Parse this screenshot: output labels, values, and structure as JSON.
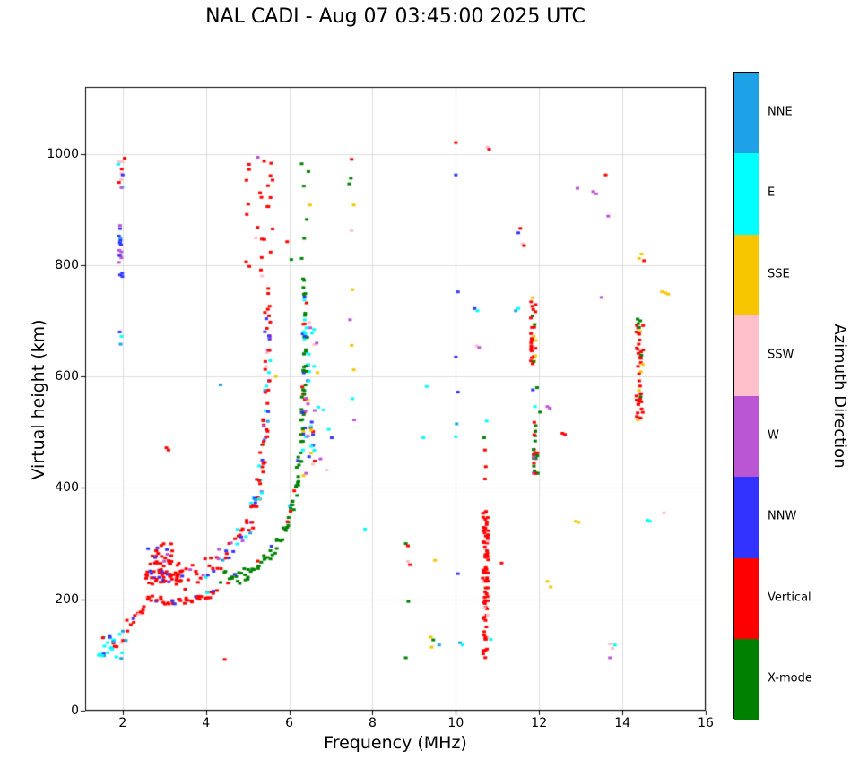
{
  "chart_data": {
    "type": "scatter",
    "title": "NAL CADI - Aug 07 03:45:00 2025 UTC",
    "xlabel": "Frequency (MHz)",
    "ylabel": "Virtual height (km)",
    "xlim": [
      1.1,
      16
    ],
    "ylim": [
      0,
      1120
    ],
    "xticks": [
      2,
      4,
      6,
      8,
      10,
      12,
      14,
      16
    ],
    "yticks": [
      0,
      200,
      400,
      600,
      800,
      1000
    ],
    "grid": true,
    "legend_position": "right-colorbar",
    "colorbar": {
      "label": "Azimuth Direction",
      "categories_top_to_bottom": [
        "NNE",
        "E",
        "SSE",
        "SSW",
        "W",
        "NNW",
        "Vertical",
        "X-mode"
      ]
    },
    "palette": {
      "NNE": "#1da2e8",
      "E": "#00ffff",
      "SSE": "#f7c600",
      "SSW": "#ffc0cb",
      "W": "#ba55d3",
      "NNW": "#3333ff",
      "Vertical": "#ff0000",
      "X-mode": "#008000"
    },
    "marker": {
      "w": 4,
      "h": 3
    },
    "bands": [
      {
        "f": [
          1.42,
          2.1
        ],
        "h": [
          92,
          145
        ],
        "n": 30,
        "colors": {
          "E": 0.3,
          "Vertical": 0.25,
          "NNE": 0.2,
          "NNW": 0.15,
          "SSW": 0.1
        }
      },
      {
        "f": [
          1.9,
          2.0
        ],
        "h": [
          773,
          882
        ],
        "n": 18,
        "colors": {
          "NNW": 0.55,
          "W": 0.3,
          "NNE": 0.15
        }
      },
      {
        "f": [
          1.88,
          2.02
        ],
        "h": [
          935,
          995
        ],
        "n": 10,
        "colors": {
          "SSW": 0.3,
          "X-mode": 0.2,
          "Vertical": 0.2,
          "E": 0.15,
          "W": 0.15
        }
      },
      {
        "f": [
          2.55,
          3.45
        ],
        "h": [
          225,
          265
        ],
        "n": 60,
        "colors": {
          "Vertical": 0.78,
          "NNW": 0.12,
          "X-mode": 0.05,
          "SSW": 0.05
        }
      },
      {
        "f": [
          2.6,
          3.2
        ],
        "h": [
          265,
          302
        ],
        "n": 22,
        "colors": {
          "Vertical": 0.7,
          "NNW": 0.2,
          "W": 0.1
        }
      },
      {
        "f": [
          4.95,
          5.6
        ],
        "h": [
          745,
          1005
        ],
        "n": 26,
        "colors": {
          "Vertical": 0.8,
          "W": 0.1,
          "SSW": 0.1
        }
      },
      {
        "f": [
          6.32,
          6.62
        ],
        "h": [
          415,
          705
        ],
        "n": 48,
        "colors": {
          "E": 0.25,
          "NNW": 0.2,
          "Vertical": 0.2,
          "SSE": 0.12,
          "W": 0.13,
          "SSW": 0.1
        }
      },
      {
        "f": [
          10.64,
          10.78
        ],
        "h": [
          90,
          358
        ],
        "n": 80,
        "colors": {
          "Vertical": 0.92,
          "SSW": 0.05,
          "E": 0.03
        }
      },
      {
        "f": [
          11.8,
          11.92
        ],
        "h": [
          620,
          748
        ],
        "n": 30,
        "colors": {
          "Vertical": 0.8,
          "SSE": 0.1,
          "X-mode": 0.1
        }
      },
      {
        "f": [
          11.86,
          11.97
        ],
        "h": [
          425,
          520
        ],
        "n": 26,
        "colors": {
          "X-mode": 0.55,
          "Vertical": 0.35,
          "W": 0.1
        }
      },
      {
        "f": [
          14.33,
          14.5
        ],
        "h": [
          515,
          705
        ],
        "n": 42,
        "colors": {
          "Vertical": 0.9,
          "X-mode": 0.06,
          "SSE": 0.04
        }
      }
    ],
    "traces": [
      {
        "path": [
          [
            2.1,
            150
          ],
          [
            2.35,
            168
          ],
          [
            2.6,
            195
          ]
        ],
        "n": 14,
        "jf": 0.06,
        "jh": 10,
        "colors": {
          "Vertical": 0.6,
          "NNW": 0.2,
          "SSW": 0.2
        }
      },
      {
        "path": [
          [
            2.6,
            202
          ],
          [
            3.2,
            196
          ],
          [
            3.8,
            202
          ],
          [
            4.25,
            212
          ]
        ],
        "n": 40,
        "jf": 0.05,
        "jh": 7,
        "colors": {
          "Vertical": 0.85,
          "NNW": 0.1,
          "E": 0.05
        }
      },
      {
        "path": [
          [
            3.5,
            236
          ],
          [
            4.0,
            256
          ],
          [
            4.4,
            276
          ],
          [
            4.8,
            306
          ],
          [
            5.05,
            335
          ],
          [
            5.2,
            372
          ],
          [
            5.3,
            412
          ],
          [
            5.38,
            462
          ],
          [
            5.44,
            520
          ],
          [
            5.48,
            590
          ],
          [
            5.5,
            660
          ],
          [
            5.46,
            730
          ]
        ],
        "n": 115,
        "jf": 0.07,
        "jh": 18,
        "colors": {
          "Vertical": 0.45,
          "NNW": 0.18,
          "E": 0.12,
          "W": 0.12,
          "NNE": 0.08,
          "SSW": 0.05
        }
      },
      {
        "path": [
          [
            4.35,
            242
          ],
          [
            4.7,
            236
          ],
          [
            5.0,
            246
          ],
          [
            5.3,
            262
          ],
          [
            5.6,
            288
          ],
          [
            5.9,
            322
          ],
          [
            6.05,
            362
          ],
          [
            6.18,
            405
          ],
          [
            6.27,
            455
          ],
          [
            6.32,
            515
          ],
          [
            6.36,
            575
          ],
          [
            6.4,
            645
          ],
          [
            6.4,
            715
          ],
          [
            6.36,
            782
          ]
        ],
        "n": 120,
        "jf": 0.05,
        "jh": 14,
        "colors": {
          "X-mode": 0.82,
          "Vertical": 0.08,
          "E": 0.05,
          "NNW": 0.05
        }
      }
    ],
    "points": [
      [
        1.95,
        658,
        "NNE"
      ],
      [
        1.97,
        672,
        "E"
      ],
      [
        1.93,
        680,
        "NNW"
      ],
      [
        2.05,
        992,
        "Vertical"
      ],
      [
        2.0,
        962,
        "NNW"
      ],
      [
        3.05,
        472,
        "Vertical"
      ],
      [
        3.1,
        468,
        "Vertical"
      ],
      [
        4.35,
        585,
        "NNE"
      ],
      [
        4.45,
        92,
        "Vertical"
      ],
      [
        5.68,
        600,
        "SSE"
      ],
      [
        6.05,
        810,
        "X-mode"
      ],
      [
        5.95,
        842,
        "Vertical"
      ],
      [
        5.6,
        865,
        "Vertical"
      ],
      [
        5.5,
        905,
        "Vertical"
      ],
      [
        5.3,
        930,
        "Vertical"
      ],
      [
        6.3,
        812,
        "X-mode"
      ],
      [
        6.36,
        848,
        "X-mode"
      ],
      [
        6.42,
        882,
        "X-mode"
      ],
      [
        6.35,
        942,
        "X-mode"
      ],
      [
        6.3,
        982,
        "X-mode"
      ],
      [
        6.46,
        968,
        "X-mode"
      ],
      [
        6.5,
        908,
        "SSE"
      ],
      [
        6.7,
        545,
        "E"
      ],
      [
        6.82,
        540,
        "E"
      ],
      [
        6.95,
        505,
        "E"
      ],
      [
        7.02,
        490,
        "NNW"
      ],
      [
        6.75,
        452,
        "W"
      ],
      [
        6.9,
        432,
        "SSW"
      ],
      [
        6.68,
        607,
        "SSE"
      ],
      [
        6.66,
        660,
        "W"
      ],
      [
        7.5,
        990,
        "Vertical"
      ],
      [
        7.48,
        956,
        "X-mode"
      ],
      [
        7.44,
        946,
        "X-mode"
      ],
      [
        7.55,
        908,
        "SSE"
      ],
      [
        7.5,
        862,
        "SSW"
      ],
      [
        7.52,
        756,
        "SSE"
      ],
      [
        7.46,
        702,
        "W"
      ],
      [
        7.5,
        656,
        "SSE"
      ],
      [
        7.55,
        612,
        "SSE"
      ],
      [
        7.52,
        560,
        "E"
      ],
      [
        7.56,
        522,
        "W"
      ],
      [
        7.82,
        326,
        "E"
      ],
      [
        8.8,
        300,
        "X-mode"
      ],
      [
        8.85,
        296,
        "Vertical"
      ],
      [
        8.85,
        268,
        "SSW"
      ],
      [
        8.9,
        262,
        "Vertical"
      ],
      [
        8.86,
        196,
        "X-mode"
      ],
      [
        8.8,
        95,
        "X-mode"
      ],
      [
        9.3,
        582,
        "E"
      ],
      [
        9.22,
        490,
        "E"
      ],
      [
        9.5,
        270,
        "SSE"
      ],
      [
        9.4,
        132,
        "SSE"
      ],
      [
        9.46,
        127,
        "X-mode"
      ],
      [
        9.42,
        114,
        "SSE"
      ],
      [
        9.6,
        118,
        "NNE"
      ],
      [
        10.0,
        1020,
        "Vertical"
      ],
      [
        10.0,
        962,
        "NNW"
      ],
      [
        10.05,
        752,
        "NNW"
      ],
      [
        10.0,
        635,
        "NNW"
      ],
      [
        10.05,
        572,
        "NNW"
      ],
      [
        10.02,
        515,
        "NNE"
      ],
      [
        10.0,
        492,
        "E"
      ],
      [
        10.05,
        246,
        "NNW"
      ],
      [
        10.1,
        122,
        "NNE"
      ],
      [
        10.16,
        118,
        "E"
      ],
      [
        10.45,
        722,
        "NNW"
      ],
      [
        10.52,
        718,
        "E"
      ],
      [
        10.5,
        655,
        "SSW"
      ],
      [
        10.56,
        652,
        "W"
      ],
      [
        10.7,
        416,
        "Vertical"
      ],
      [
        10.72,
        438,
        "Vertical"
      ],
      [
        10.7,
        468,
        "Vertical"
      ],
      [
        10.68,
        490,
        "X-mode"
      ],
      [
        10.74,
        520,
        "E"
      ],
      [
        10.76,
        1012,
        "SSW"
      ],
      [
        10.8,
        1008,
        "Vertical"
      ],
      [
        10.84,
        128,
        "E"
      ],
      [
        11.1,
        265,
        "Vertical"
      ],
      [
        11.5,
        722,
        "E"
      ],
      [
        11.44,
        718,
        "NNE"
      ],
      [
        11.55,
        866,
        "Vertical"
      ],
      [
        11.5,
        858,
        "NNW"
      ],
      [
        11.6,
        838,
        "SSW"
      ],
      [
        11.64,
        835,
        "Vertical"
      ],
      [
        11.85,
        576,
        "NNW"
      ],
      [
        11.95,
        580,
        "X-mode"
      ],
      [
        11.9,
        546,
        "E"
      ],
      [
        12.02,
        536,
        "X-mode"
      ],
      [
        12.2,
        546,
        "W"
      ],
      [
        12.26,
        543,
        "W"
      ],
      [
        12.2,
        232,
        "SSE"
      ],
      [
        12.28,
        222,
        "SSE"
      ],
      [
        12.56,
        498,
        "Vertical"
      ],
      [
        12.62,
        496,
        "Vertical"
      ],
      [
        12.88,
        340,
        "SSE"
      ],
      [
        12.95,
        338,
        "SSE"
      ],
      [
        12.92,
        938,
        "W"
      ],
      [
        13.3,
        932,
        "W"
      ],
      [
        13.37,
        928,
        "W"
      ],
      [
        13.6,
        962,
        "Vertical"
      ],
      [
        13.66,
        888,
        "W"
      ],
      [
        13.5,
        742,
        "W"
      ],
      [
        13.7,
        120,
        "SSW"
      ],
      [
        13.76,
        112,
        "SSW"
      ],
      [
        13.7,
        95,
        "W"
      ],
      [
        13.82,
        118,
        "E"
      ],
      [
        14.38,
        695,
        "X-mode"
      ],
      [
        14.43,
        700,
        "X-mode"
      ],
      [
        14.4,
        688,
        "X-mode"
      ],
      [
        14.4,
        575,
        "SSE"
      ],
      [
        14.37,
        522,
        "SSE"
      ],
      [
        14.4,
        812,
        "SSE"
      ],
      [
        14.46,
        820,
        "SSE"
      ],
      [
        14.52,
        808,
        "Vertical"
      ],
      [
        14.6,
        342,
        "E"
      ],
      [
        14.66,
        340,
        "E"
      ],
      [
        15.0,
        355,
        "SSW"
      ],
      [
        14.95,
        752,
        "SSE"
      ],
      [
        15.03,
        750,
        "SSE"
      ],
      [
        15.1,
        748,
        "SSE"
      ]
    ]
  }
}
